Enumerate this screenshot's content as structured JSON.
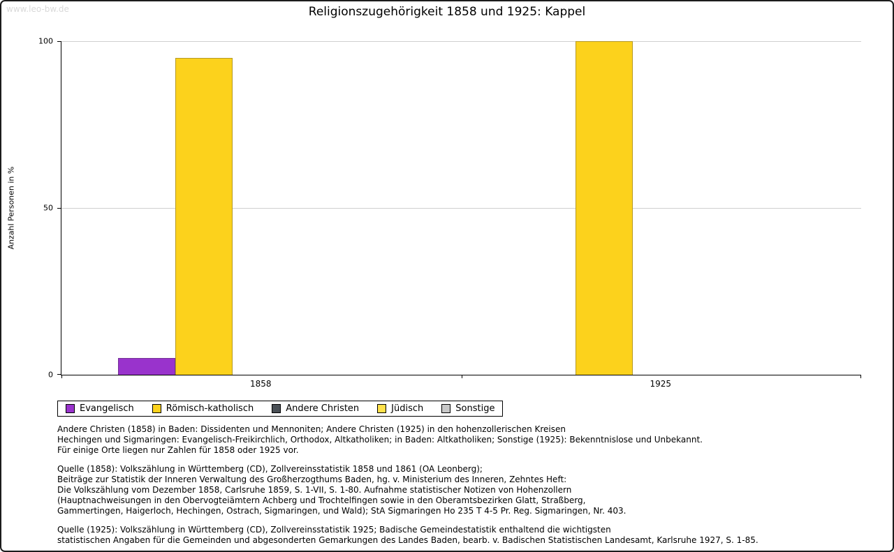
{
  "watermark": "www.leo-bw.de",
  "chart_data": {
    "type": "bar",
    "title": "Religionszugehörigkeit 1858 und 1925: Kappel",
    "ylabel": "Anzahl Personen in %",
    "ylim": [
      0,
      100
    ],
    "yticks": [
      0,
      50,
      100
    ],
    "grid": "horizontal",
    "legend_position": "bottom-left",
    "categories": [
      "1858",
      "1925"
    ],
    "series": [
      {
        "name": "Evangelisch",
        "color": "#9933cc",
        "values": [
          5,
          0
        ]
      },
      {
        "name": "Römisch-katholisch",
        "color": "#fcd21c",
        "values": [
          95,
          100
        ]
      },
      {
        "name": "Andere Christen",
        "color": "#4a5056",
        "values": [
          0,
          0
        ]
      },
      {
        "name": "Jüdisch",
        "color": "#ffe14a",
        "values": [
          0,
          0
        ]
      },
      {
        "name": "Sonstige",
        "color": "#c8c8c8",
        "values": [
          0,
          0
        ]
      }
    ]
  },
  "footnotes": {
    "note": "Andere Christen (1858) in Baden: Dissidenten und Mennoniten; Andere Christen (1925) in den hohenzollerischen Kreisen\nHechingen und Sigmaringen: Evangelisch-Freikirchlich, Orthodox, Altkatholiken; in Baden: Altkatholiken; Sonstige (1925): Bekenntnislose und Unbekannt.\nFür einige Orte liegen nur Zahlen für 1858 oder 1925 vor.",
    "source_1858": "Quelle (1858): Volkszählung in Württemberg (CD), Zollvereinsstatistik 1858 und 1861 (OA Leonberg);\nBeiträge zur Statistik der Inneren Verwaltung des Großherzogthums Baden, hg. v. Ministerium des Inneren, Zehntes Heft:\nDie Volkszählung vom Dezember 1858, Carlsruhe 1859, S. 1-VII, S. 1-80. Aufnahme statistischer Notizen von Hohenzollern\n(Hauptnachweisungen in den Obervogteiämtern Achberg und Trochtelfingen sowie in den Oberamtsbezirken Glatt, Straßberg,\nGammertingen, Haigerloch, Hechingen, Ostrach, Sigmaringen, und Wald); StA Sigmaringen Ho 235 T 4-5 Pr. Reg. Sigmaringen, Nr. 403.",
    "source_1925": "Quelle (1925): Volkszählung in Württemberg (CD), Zollvereinsstatistik 1925; Badische Gemeindestatistik enthaltend die wichtigsten\nstatistischen Angaben für die Gemeinden und abgesonderten Gemarkungen des Landes Baden, bearb. v. Badischen Statistischen Landesamt, Karlsruhe 1927, S. 1-85."
  }
}
